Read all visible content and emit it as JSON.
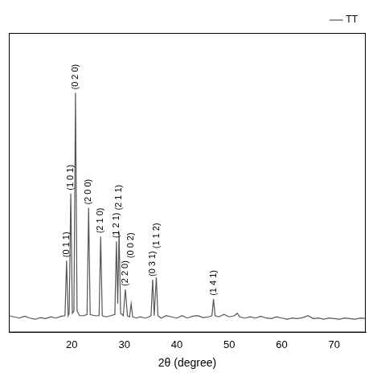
{
  "chart_data": {
    "type": "line",
    "x_label": "2θ (degree)",
    "series": [
      {
        "name": "TT",
        "color": "#555555",
        "x": [
          8,
          9,
          10,
          11,
          12,
          13,
          14,
          15,
          16,
          17,
          18,
          18.7,
          19.0,
          19.3,
          19.5,
          19.8,
          20.1,
          20.4,
          20.7,
          21.0,
          21.5,
          22.2,
          22.9,
          23.2,
          23.5,
          24.3,
          25.2,
          25.5,
          25.8,
          26.6,
          27.4,
          28.2,
          28.5,
          28.75,
          29.0,
          29.3,
          29.8,
          30.2,
          30.6,
          31.0,
          31.3,
          31.6,
          32.3,
          33.0,
          34.0,
          34.7,
          35.1,
          35.4,
          35.7,
          36.1,
          36.4,
          37.0,
          38.0,
          39.0,
          40.0,
          41.0,
          42.0,
          43.0,
          44.0,
          45.0,
          46.0,
          46.7,
          47.0,
          47.3,
          48.0,
          49.0,
          50.0,
          51.0,
          51.5,
          52.0,
          53.0,
          54.0,
          55.0,
          56.0,
          57.0,
          58.0,
          59.0,
          60.0,
          61.0,
          62.0,
          63.0,
          64.0,
          65.0,
          66.0,
          67.0,
          68.0,
          69.0,
          70.0,
          71.0,
          72.0,
          73.0,
          74.0,
          75.0,
          76.0
        ],
        "values": [
          7,
          6.5,
          6,
          6.8,
          6,
          5.5,
          6.2,
          5.8,
          6.5,
          6,
          6.8,
          7,
          30,
          7,
          8,
          58,
          8,
          9,
          100,
          9,
          7,
          7,
          7.5,
          52,
          7.5,
          7,
          7,
          40,
          7,
          6.5,
          7,
          7.5,
          38,
          12,
          42,
          8,
          7,
          18,
          7,
          6.5,
          12,
          6.5,
          6,
          6.5,
          6,
          6.5,
          7,
          22,
          7,
          23,
          7,
          6,
          7,
          6.5,
          6,
          7,
          6,
          6.8,
          7,
          6.2,
          6.5,
          7,
          14,
          7,
          6.5,
          7.5,
          6.5,
          7,
          8,
          6.5,
          6,
          6.5,
          6,
          6.8,
          6,
          5.8,
          6.5,
          6,
          5.5,
          6,
          5.8,
          6.2,
          7,
          5.8,
          6,
          5.5,
          6,
          5.8,
          5.5,
          6,
          5.8,
          5.5,
          6,
          5.8
        ]
      }
    ],
    "annotations": [
      {
        "text": "(0 1 1)",
        "x": 19.0
      },
      {
        "text": "(1 0 1)",
        "x": 19.8
      },
      {
        "text": "(0 2 0)",
        "x": 20.7
      },
      {
        "text": "(2 0 0)",
        "x": 23.2
      },
      {
        "text": "(2 1 0)",
        "x": 25.5
      },
      {
        "text": "(1 2 1)",
        "x": 28.5
      },
      {
        "text": "(2 1 1)",
        "x": 29.0
      },
      {
        "text": "(2 2 0)",
        "x": 30.2
      },
      {
        "text": "(0 0 2)",
        "x": 31.3
      },
      {
        "text": "(0 3 1)",
        "x": 35.4
      },
      {
        "text": "(1 1 2)",
        "x": 36.1
      },
      {
        "text": "(1 4 1)",
        "x": 47.0
      }
    ],
    "xlim": [
      8,
      76
    ],
    "xticks": [
      20,
      30,
      40,
      50,
      60,
      70
    ],
    "ylim": [
      0,
      125
    ],
    "tick_labels": "x",
    "grid": false,
    "legend": "upper right"
  }
}
